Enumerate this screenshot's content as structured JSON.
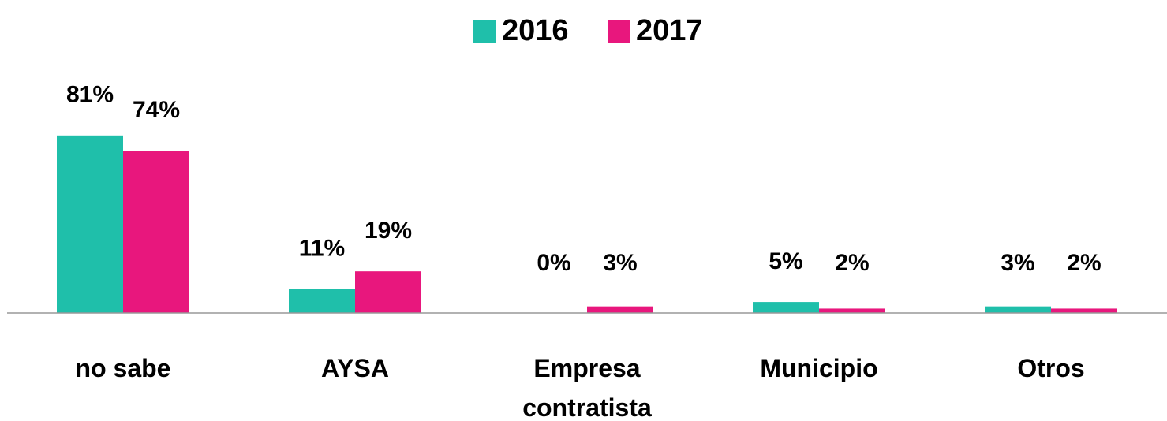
{
  "chart_data": {
    "type": "bar",
    "categories": [
      "no sabe",
      "AYSA",
      "Empresa contratista",
      "Municipio",
      "Otros"
    ],
    "series": [
      {
        "name": "2016",
        "color": "#1fbfaa",
        "values": [
          81,
          11,
          0,
          5,
          3
        ],
        "value_labels": [
          "81%",
          "11%",
          "0%",
          "5%",
          "3%"
        ]
      },
      {
        "name": "2017",
        "color": "#e8177d",
        "values": [
          74,
          19,
          3,
          2,
          2
        ],
        "value_labels": [
          "74%",
          "19%",
          "3%",
          "2%",
          "2%"
        ]
      }
    ],
    "ylim": [
      0,
      100
    ],
    "legend": "top"
  }
}
